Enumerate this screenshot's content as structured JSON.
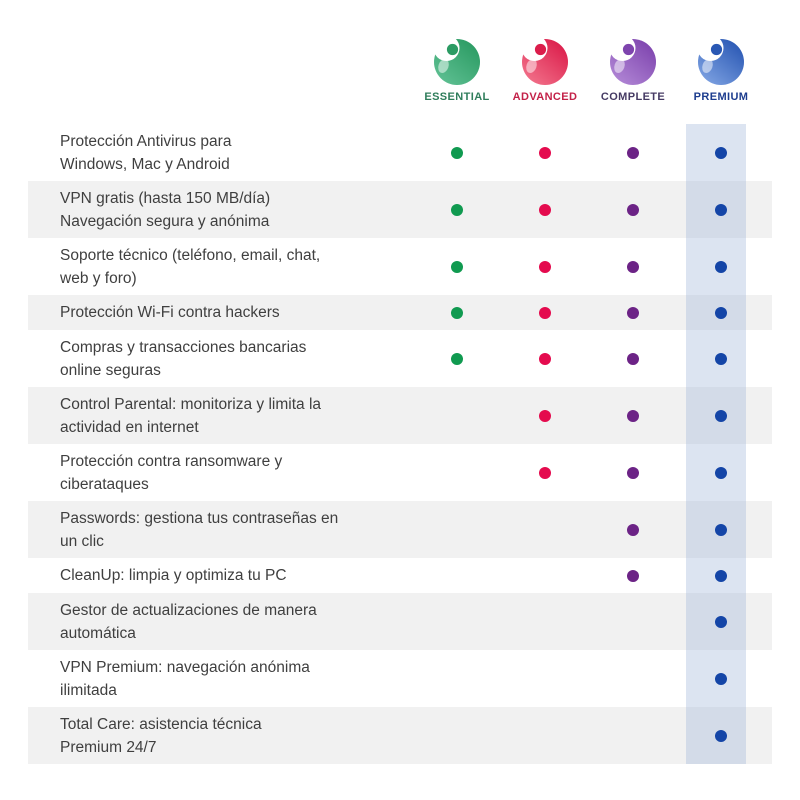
{
  "plans": [
    {
      "name": "ESSENTIAL",
      "label_color": "#2f7d5b",
      "icon_dark": "#2b9b63",
      "icon_light": "#5fc093",
      "dot_color": "#109a50",
      "highlighted": false
    },
    {
      "name": "ADVANCED",
      "label_color": "#c32148",
      "icon_dark": "#db1d4b",
      "icon_light": "#f2738b",
      "dot_color": "#e40b4e",
      "highlighted": false
    },
    {
      "name": "COMPLETE",
      "label_color": "#453a63",
      "icon_dark": "#7e44ae",
      "icon_light": "#b288d6",
      "dot_color": "#6c2386",
      "highlighted": false
    },
    {
      "name": "PREMIUM",
      "label_color": "#1c3c8e",
      "icon_dark": "#2a58b4",
      "icon_light": "#7fa3e2",
      "dot_color": "#1445a7",
      "highlighted": true
    }
  ],
  "highlight_color": "rgba(164,185,217,0.38)",
  "row_alt_color": "#f1f1f1",
  "features": [
    {
      "lines": [
        "Protección Antivirus para",
        "Windows, Mac y Android"
      ],
      "availability": [
        true,
        true,
        true,
        true
      ]
    },
    {
      "lines": [
        "VPN gratis (hasta 150 MB/día)",
        "Navegación segura y anónima"
      ],
      "availability": [
        true,
        true,
        true,
        true
      ]
    },
    {
      "lines": [
        "Soporte técnico (teléfono, email, chat,",
        "web y foro)"
      ],
      "availability": [
        true,
        true,
        true,
        true
      ]
    },
    {
      "lines": [
        "Protección Wi-Fi contra hackers"
      ],
      "availability": [
        true,
        true,
        true,
        true
      ]
    },
    {
      "lines": [
        "Compras y transacciones bancarias",
        "online seguras"
      ],
      "availability": [
        true,
        true,
        true,
        true
      ]
    },
    {
      "lines": [
        "Control Parental: monitoriza y limita la",
        "actividad en internet"
      ],
      "availability": [
        false,
        true,
        true,
        true
      ]
    },
    {
      "lines": [
        "Protección contra ransomware y",
        "ciberataques"
      ],
      "availability": [
        false,
        true,
        true,
        true
      ]
    },
    {
      "lines": [
        "Passwords: gestiona tus contraseñas en",
        "un clic"
      ],
      "availability": [
        false,
        false,
        true,
        true
      ]
    },
    {
      "lines": [
        "CleanUp: limpia y optimiza tu PC"
      ],
      "availability": [
        false,
        false,
        true,
        true
      ]
    },
    {
      "lines": [
        "Gestor de actualizaciones de manera",
        "automática"
      ],
      "availability": [
        false,
        false,
        false,
        true
      ]
    },
    {
      "lines": [
        "VPN Premium: navegación anónima",
        "ilimitada"
      ],
      "availability": [
        false,
        false,
        false,
        true
      ]
    },
    {
      "lines": [
        "Total Care: asistencia técnica",
        "Premium 24/7"
      ],
      "availability": [
        false,
        false,
        false,
        true
      ]
    }
  ]
}
